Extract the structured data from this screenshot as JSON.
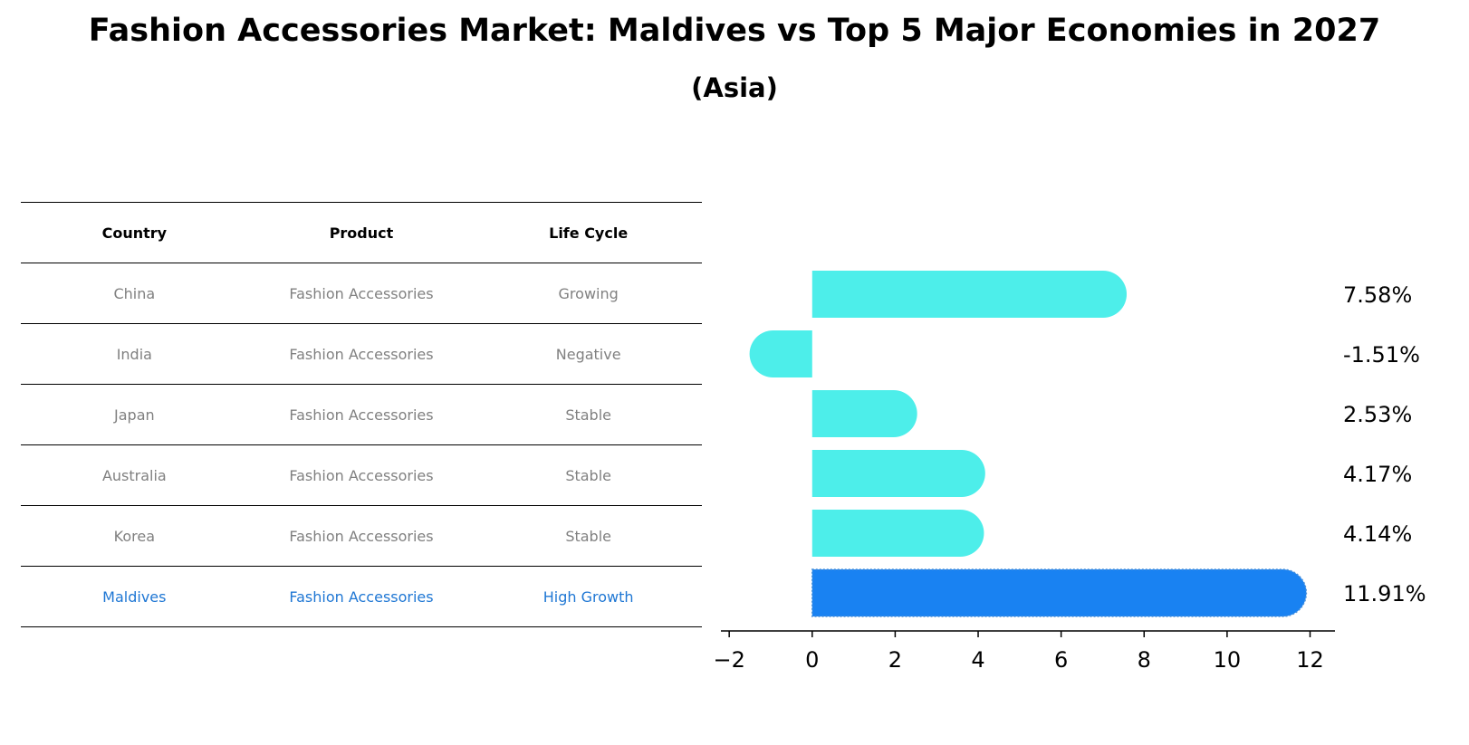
{
  "title": "Fashion Accessories Market: Maldives vs Top 5 Major Economies in 2027",
  "subtitle": "(Asia)",
  "table": {
    "headers": [
      "Country",
      "Product",
      "Life Cycle"
    ],
    "rows": [
      {
        "country": "China",
        "product": "Fashion Accessories",
        "life_cycle": "Growing"
      },
      {
        "country": "India",
        "product": "Fashion Accessories",
        "life_cycle": "Negative"
      },
      {
        "country": "Japan",
        "product": "Fashion Accessories",
        "life_cycle": "Stable"
      },
      {
        "country": "Australia",
        "product": "Fashion Accessories",
        "life_cycle": "Stable"
      },
      {
        "country": "Korea",
        "product": "Fashion Accessories",
        "life_cycle": "Stable"
      },
      {
        "country": "Maldives",
        "product": "Fashion Accessories",
        "life_cycle": "High Growth"
      }
    ],
    "highlight_color": "#1f77d4"
  },
  "chart_data": {
    "type": "bar",
    "orientation": "horizontal",
    "categories": [
      "China",
      "India",
      "Japan",
      "Australia",
      "Korea",
      "Maldives"
    ],
    "values": [
      7.58,
      -1.51,
      2.53,
      4.17,
      4.14,
      11.91
    ],
    "value_labels": [
      "7.58%",
      "-1.51%",
      "2.53%",
      "4.17%",
      "4.14%",
      "11.91%"
    ],
    "xlim": [
      -2.2,
      12.6
    ],
    "xticks": [
      -2,
      0,
      2,
      4,
      6,
      8,
      10,
      12
    ],
    "xtick_labels": [
      "−2",
      "0",
      "2",
      "4",
      "6",
      "8",
      "10",
      "12"
    ],
    "bar_color": "#4deeea",
    "highlight_color": "#1982f2",
    "highlight_index": 5,
    "grid": false
  }
}
